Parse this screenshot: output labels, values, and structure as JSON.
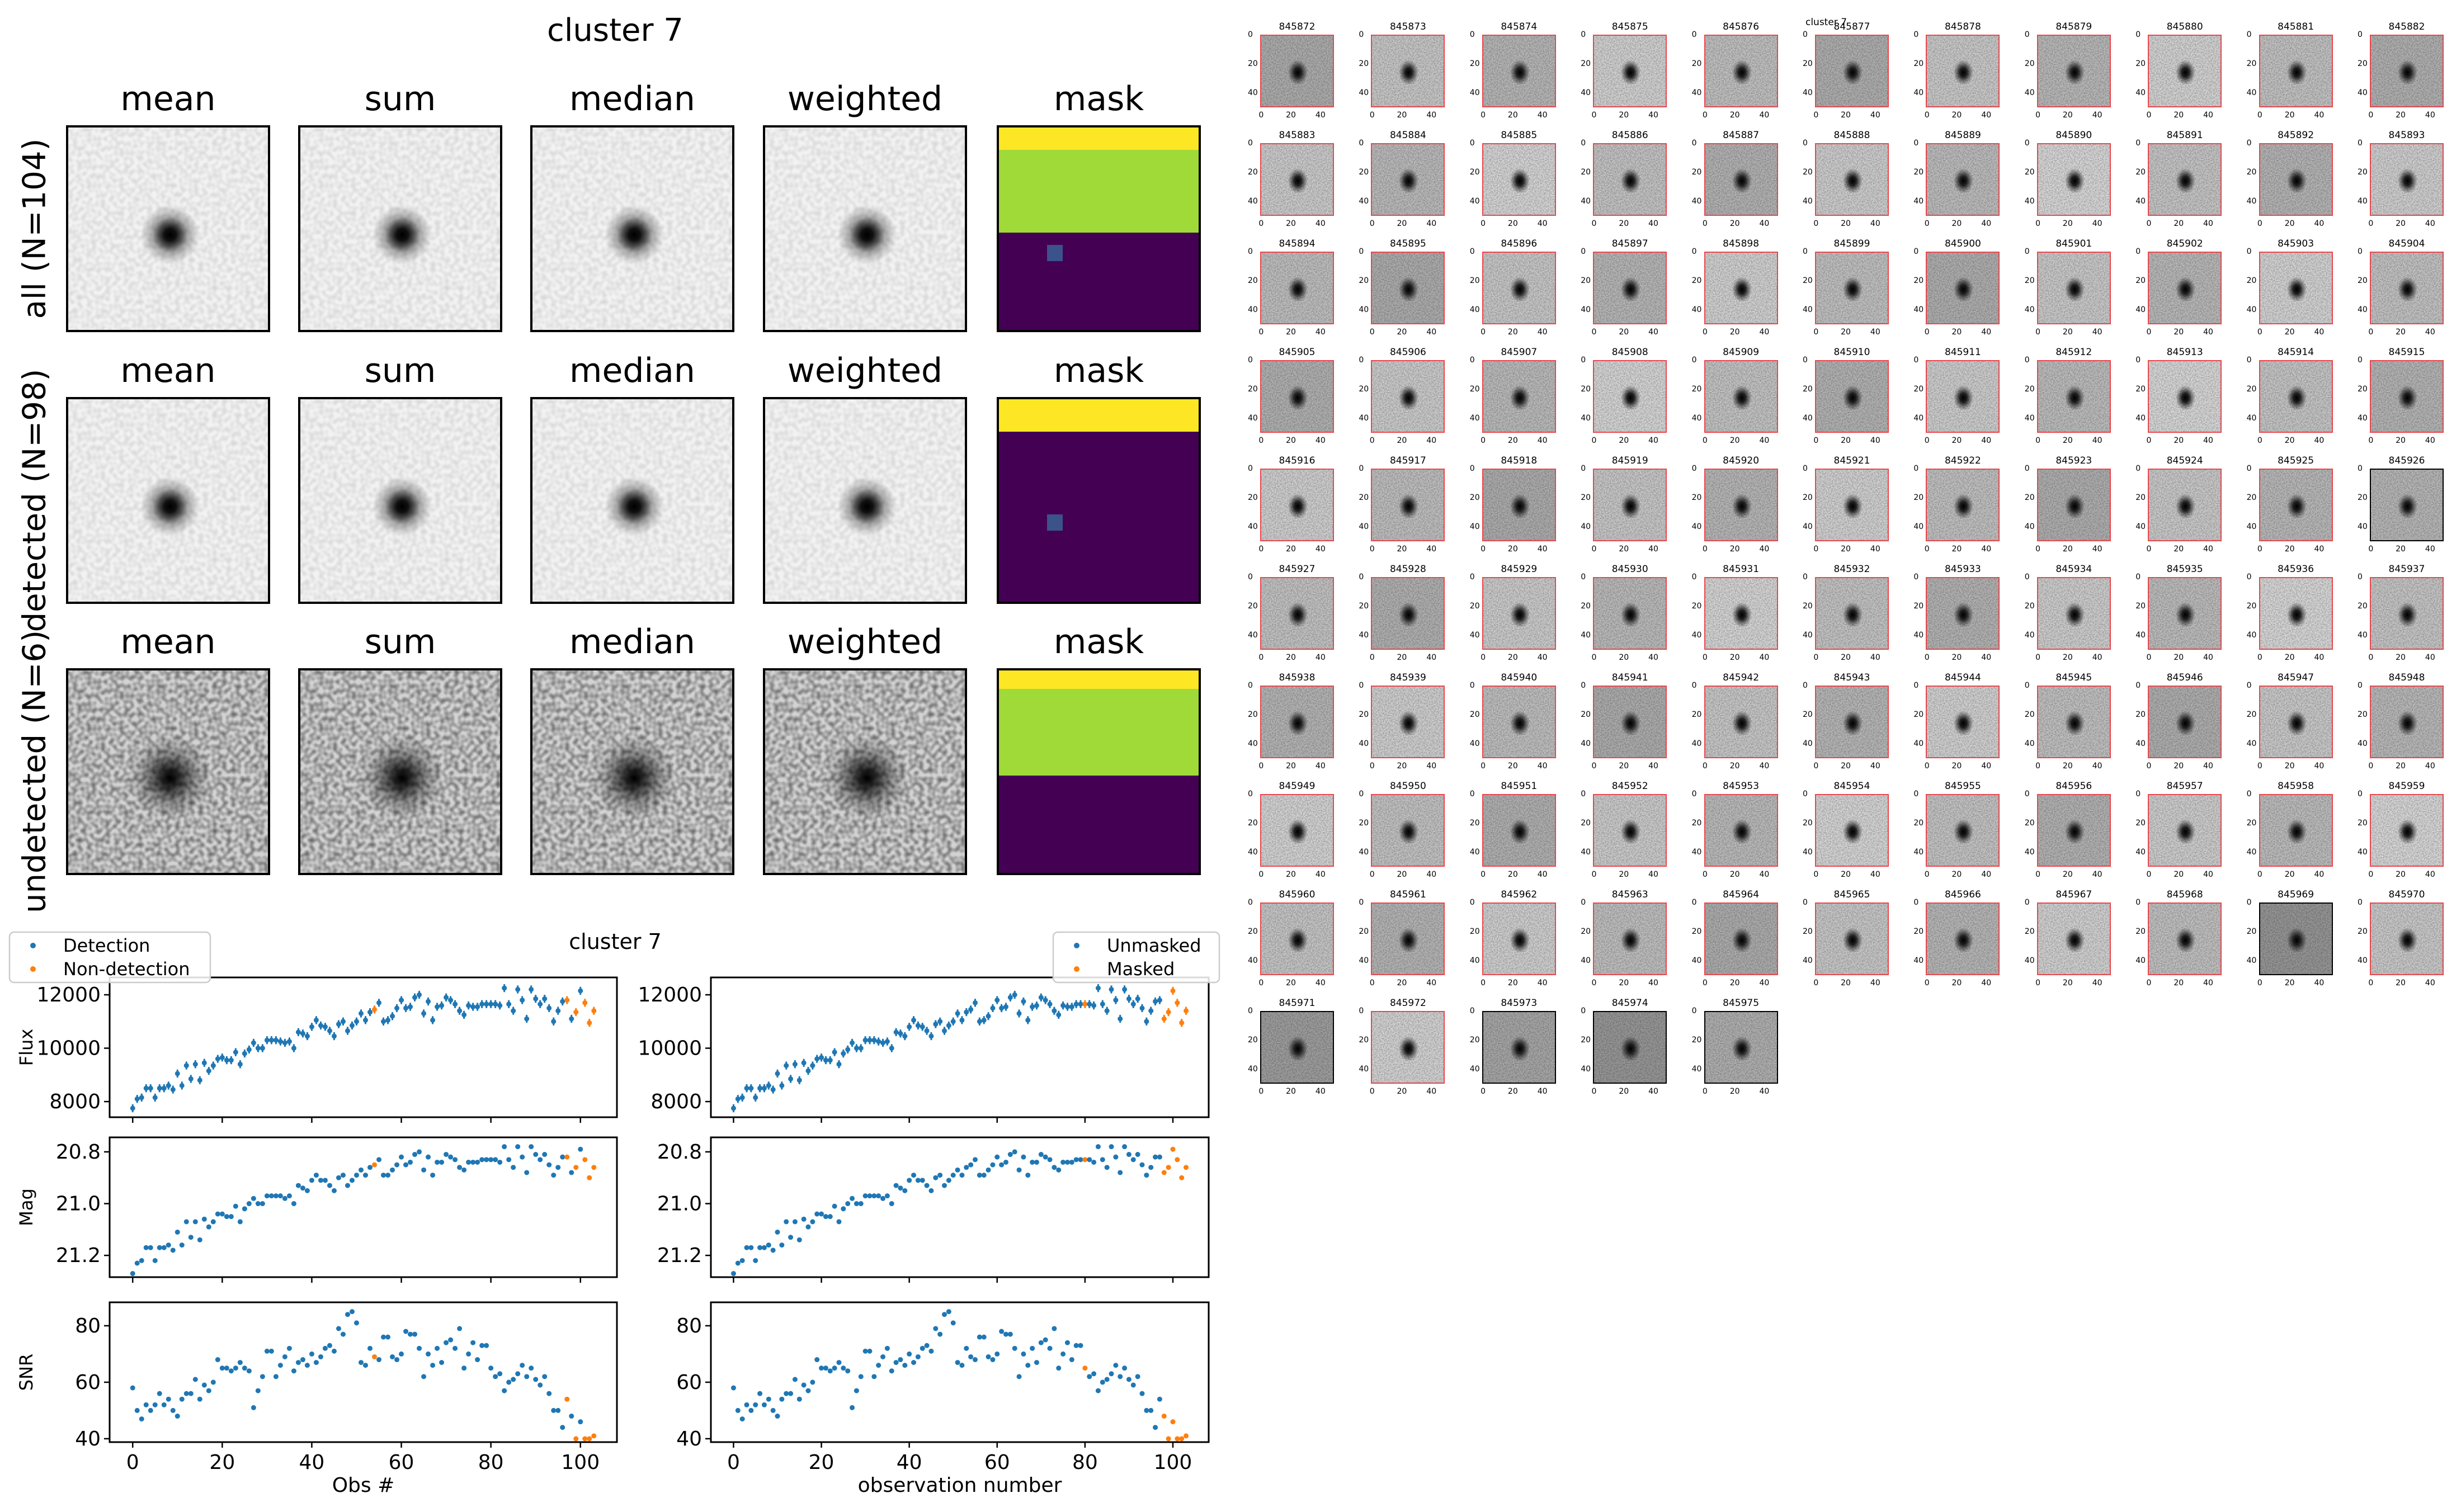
{
  "summary": {
    "title": "cluster 7",
    "column_titles": [
      "mean",
      "sum",
      "median",
      "weighted",
      "mask"
    ],
    "rows": [
      {
        "label": "all (N=104)"
      },
      {
        "label": "detected (N=98)"
      },
      {
        "label": "undetected (N=6)"
      }
    ],
    "mask_colors": {
      "yellow": "#fde725",
      "green": "#a0da39",
      "purple": "#440154",
      "blob": "#3b528b"
    }
  },
  "stamps": {
    "title": "cluster 7",
    "tick_labels": [
      "0",
      "20",
      "40"
    ],
    "border_colors": {
      "detected": "#e8474d",
      "undetected": "#000000"
    },
    "undetected_ids": [
      "845926",
      "845969",
      "845971",
      "845973",
      "845974",
      "845975"
    ],
    "ids": [
      "845872",
      "845873",
      "845874",
      "845875",
      "845876",
      "845877",
      "845878",
      "845879",
      "845880",
      "845881",
      "845882",
      "845883",
      "845884",
      "845885",
      "845886",
      "845887",
      "845888",
      "845889",
      "845890",
      "845891",
      "845892",
      "845893",
      "845894",
      "845895",
      "845896",
      "845897",
      "845898",
      "845899",
      "845900",
      "845901",
      "845902",
      "845903",
      "845904",
      "845905",
      "845906",
      "845907",
      "845908",
      "845909",
      "845910",
      "845911",
      "845912",
      "845913",
      "845914",
      "845915",
      "845916",
      "845917",
      "845918",
      "845919",
      "845920",
      "845921",
      "845922",
      "845923",
      "845924",
      "845925",
      "845926",
      "845927",
      "845928",
      "845929",
      "845930",
      "845931",
      "845932",
      "845933",
      "845934",
      "845935",
      "845936",
      "845937",
      "845938",
      "845939",
      "845940",
      "845941",
      "845942",
      "845943",
      "845944",
      "845945",
      "845946",
      "845947",
      "845948",
      "845949",
      "845950",
      "845951",
      "845952",
      "845953",
      "845954",
      "845955",
      "845956",
      "845957",
      "845958",
      "845959",
      "845960",
      "845961",
      "845962",
      "845963",
      "845964",
      "845965",
      "845966",
      "845967",
      "845968",
      "845969",
      "845970",
      "845971",
      "845972",
      "845973",
      "845974",
      "845975"
    ]
  },
  "chart_data": {
    "type": "scatter",
    "title": "cluster 7",
    "colors": {
      "blue": "#1f77b4",
      "orange": "#ff7f0e"
    },
    "x": "observation index 0..103",
    "flux": [
      7750,
      8100,
      8150,
      8500,
      8500,
      8150,
      8500,
      8500,
      8600,
      8450,
      9050,
      8600,
      9350,
      8850,
      9400,
      8800,
      9450,
      9150,
      9350,
      9600,
      9650,
      9550,
      9550,
      9850,
      9400,
      9800,
      9950,
      10200,
      10000,
      10000,
      10300,
      10300,
      10300,
      10250,
      10200,
      10250,
      10000,
      10600,
      10550,
      10450,
      10800,
      11050,
      10850,
      10800,
      10650,
      10450,
      10900,
      11000,
      10650,
      10850,
      11000,
      11300,
      11050,
      11350,
      11450,
      11700,
      11000,
      11050,
      11200,
      11500,
      11800,
      11500,
      11550,
      11900,
      12000,
      11300,
      11750,
      11050,
      11550,
      11600,
      11900,
      11800,
      11650,
      11400,
      11250,
      11600,
      11550,
      11550,
      11650,
      11650,
      11650,
      11650,
      11600,
      12250,
      11650,
      11400,
      12200,
      11800,
      11100,
      12200,
      11850,
      11650,
      11850,
      11500,
      11000,
      11400,
      11750,
      11800,
      11100,
      11350,
      12150,
      11700,
      10950,
      11400
    ],
    "flux_err": 150,
    "mag": [
      21.27,
      21.23,
      21.22,
      21.17,
      21.17,
      21.22,
      21.17,
      21.17,
      21.16,
      21.18,
      21.11,
      21.16,
      21.07,
      21.13,
      21.07,
      21.14,
      21.06,
      21.09,
      21.07,
      21.04,
      21.04,
      21.05,
      21.05,
      21.01,
      21.07,
      21.02,
      21.0,
      20.98,
      21.0,
      21.0,
      20.97,
      20.97,
      20.97,
      20.97,
      20.98,
      20.97,
      21.0,
      20.93,
      20.94,
      20.95,
      20.91,
      20.89,
      20.91,
      20.91,
      20.93,
      20.95,
      20.9,
      20.89,
      20.93,
      20.91,
      20.89,
      20.87,
      20.89,
      20.86,
      20.85,
      20.83,
      20.89,
      20.89,
      20.87,
      20.85,
      20.82,
      20.85,
      20.84,
      20.81,
      20.8,
      20.87,
      20.82,
      20.89,
      20.84,
      20.84,
      20.81,
      20.82,
      20.83,
      20.86,
      20.87,
      20.84,
      20.84,
      20.84,
      20.83,
      20.83,
      20.83,
      20.83,
      20.84,
      20.78,
      20.83,
      20.86,
      20.78,
      20.82,
      20.88,
      20.78,
      20.81,
      20.83,
      20.81,
      20.85,
      20.89,
      20.86,
      20.82,
      20.82,
      20.88,
      20.86,
      20.79,
      20.83,
      20.9,
      20.86
    ],
    "snr": [
      58,
      50,
      47,
      52,
      50,
      52,
      56,
      52,
      54,
      50,
      48,
      54,
      56,
      56,
      61,
      54,
      59,
      57,
      60,
      68,
      65,
      65,
      64,
      65,
      67,
      65,
      64,
      51,
      57,
      62,
      71,
      71,
      62,
      66,
      69,
      72,
      64,
      67,
      68,
      66,
      70,
      67,
      69,
      72,
      73,
      71,
      79,
      77,
      84,
      85,
      81,
      67,
      66,
      72,
      69,
      68,
      76,
      76,
      69,
      68,
      70,
      78,
      77,
      77,
      72,
      62,
      70,
      66,
      72,
      67,
      74,
      75,
      72,
      79,
      65,
      70,
      74,
      68,
      73,
      73,
      65,
      62,
      63,
      57,
      60,
      61,
      63,
      66,
      62,
      65,
      61,
      59,
      62,
      56,
      50,
      50,
      44,
      54,
      48,
      40,
      46,
      40,
      40,
      41
    ],
    "left": {
      "highlight_indices": [
        54,
        97,
        99,
        101,
        102,
        103
      ],
      "legend": [
        "Detection",
        "Non-detection"
      ],
      "legend_position": "upper-left",
      "xlabel": "Obs #"
    },
    "right": {
      "highlight_indices": [
        80,
        98,
        99,
        100,
        101,
        102,
        103
      ],
      "legend": [
        "Unmasked",
        "Masked"
      ],
      "legend_position": "upper-right",
      "xlabel": "observation number"
    },
    "panels": [
      {
        "key": "flux",
        "ylabel": "Flux",
        "ylim": [
          7414,
          12650
        ],
        "yticks": [
          "8000",
          "10000",
          "12000"
        ],
        "inverted": false
      },
      {
        "key": "mag",
        "ylabel": "Mag",
        "ylim": [
          20.744,
          21.284
        ],
        "yticks": [
          "20.8",
          "21.0",
          "21.2"
        ],
        "inverted": true
      },
      {
        "key": "snr",
        "ylabel": "SNR",
        "ylim": [
          38.8,
          88.3
        ],
        "yticks": [
          "40",
          "60",
          "80"
        ],
        "inverted": false
      }
    ],
    "xlim": [
      -5.15,
      108.15
    ],
    "xticks": [
      "0",
      "20",
      "40",
      "60",
      "80",
      "100"
    ]
  }
}
